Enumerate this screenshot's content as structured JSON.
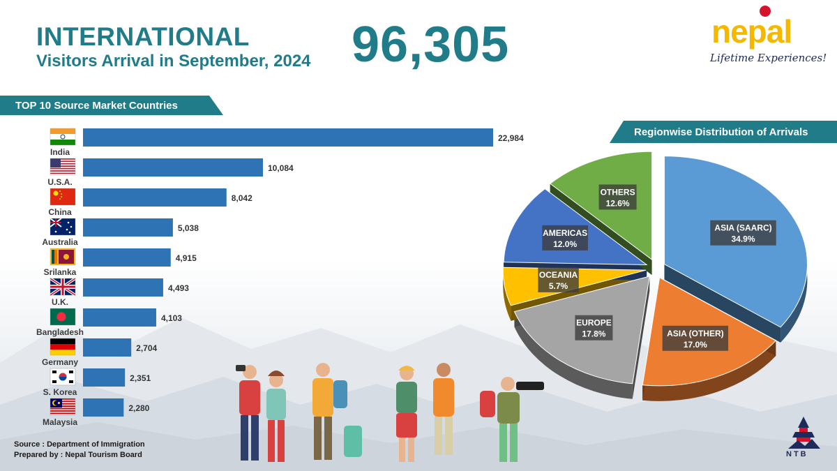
{
  "header": {
    "title": "INTERNATIONAL",
    "subtitle": "Visitors Arrival in September, 2024",
    "total": "96,305"
  },
  "logo": {
    "word": "nepal",
    "tagline": "Lifetime Experiences!",
    "org": "NTB"
  },
  "footer": {
    "source": "Source : Department of Immigration",
    "prepared": "Prepared by : Nepal Tourism Board"
  },
  "colors": {
    "brand_teal": "#1f7c88",
    "bar_blue": "#2e74b5",
    "logo_yellow": "#f5b800"
  },
  "chart_data": [
    {
      "type": "bar",
      "orientation": "horizontal",
      "title": "TOP 10 Source Market Countries",
      "categories": [
        "India",
        "U.S.A.",
        "China",
        "Australia",
        "Srilanka",
        "U.K.",
        "Bangladesh",
        "Germany",
        "S. Korea",
        "Malaysia"
      ],
      "values": [
        22984,
        10084,
        8042,
        5038,
        4915,
        4493,
        4103,
        2704,
        2351,
        2280
      ],
      "value_labels": [
        "22,984",
        "10,084",
        "8,042",
        "5,038",
        "4,915",
        "4,493",
        "4,103",
        "2,704",
        "2,351",
        "2,280"
      ],
      "xlim": [
        0,
        22984
      ],
      "grid": false,
      "flags": [
        "india-flag-icon",
        "usa-flag-icon",
        "china-flag-icon",
        "australia-flag-icon",
        "srilanka-flag-icon",
        "uk-flag-icon",
        "bangladesh-flag-icon",
        "germany-flag-icon",
        "south-korea-flag-icon",
        "malaysia-flag-icon"
      ]
    },
    {
      "type": "pie",
      "title": "Regionwise Distribution of Arrivals",
      "slices": [
        {
          "label": "ASIA (SAARC)",
          "percent_label": "34.9%",
          "value": 34.9,
          "color": "#5b9bd5"
        },
        {
          "label": "ASIA (OTHER)",
          "percent_label": "17.0%",
          "value": 17.0,
          "color": "#ed7d31"
        },
        {
          "label": "EUROPE",
          "percent_label": "17.8%",
          "value": 17.8,
          "color": "#a5a5a5"
        },
        {
          "label": "OCEANIA",
          "percent_label": "5.7%",
          "value": 5.7,
          "color": "#ffc000"
        },
        {
          "label": "AMERICAS",
          "percent_label": "12.0%",
          "value": 12.0,
          "color": "#4472c4"
        },
        {
          "label": "OTHERS",
          "percent_label": "12.6%",
          "value": 12.6,
          "color": "#70ad47"
        }
      ]
    }
  ]
}
